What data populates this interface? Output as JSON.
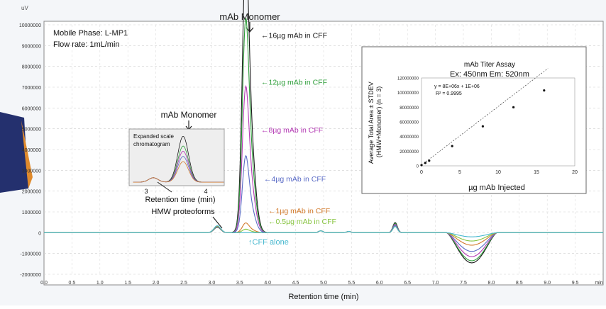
{
  "chart_data": [
    {
      "type": "line",
      "title": "mAb Monomer",
      "xlabel": "Retention time (min)",
      "ylabel": "uV",
      "xlim": [
        0.0,
        10.0
      ],
      "ylim": [
        -2000000,
        10000000
      ],
      "x_ticks": [
        "0.0",
        "0.5",
        "1.0",
        "1.5",
        "2.0",
        "2.5",
        "3.0",
        "3.5",
        "4.0",
        "4.5",
        "5.0",
        "5.5",
        "6.0",
        "6.5",
        "7.0",
        "7.5",
        "8.0",
        "8.5",
        "9.0",
        "9.5",
        "min"
      ],
      "y_ticks": [
        "10000000",
        "9000000",
        "8000000",
        "7000000",
        "6000000",
        "5000000",
        "4000000",
        "3000000",
        "2000000",
        "1000000",
        "0",
        "-1000000",
        "-2000000"
      ],
      "grid": true,
      "annotations": {
        "mobile_phase": "Mobile Phase: L-MP1",
        "flow_rate": "Flow rate: 1mL/min",
        "hmw": "HMW proteoforms",
        "cff_alone": "↑CFF alone"
      },
      "series": [
        {
          "name": "16µg mAb in CFF",
          "color": "#1a1a1a",
          "peak_height": 9500000,
          "dip": -1450000
        },
        {
          "name": "12µg mAb in CFF",
          "color": "#2e9e3a",
          "peak_height": 7250000,
          "dip": -1350000
        },
        {
          "name": "8µg mAb in CFF",
          "color": "#b43ab4",
          "peak_height": 4950000,
          "dip": -1150000
        },
        {
          "name": "4µg mAb in CFF",
          "color": "#5a6bc6",
          "peak_height": 2600000,
          "dip": -900000
        },
        {
          "name": "1µg mAb in CFF",
          "color": "#d27a2c",
          "peak_height": 330000,
          "dip": -600000
        },
        {
          "name": "0.5µg mAb in CFF",
          "color": "#86c33e",
          "peak_height": 120000,
          "dip": -400000
        },
        {
          "name": "",
          "color": "#48b8cf",
          "peak_height": 0,
          "dip": -200000
        }
      ],
      "peak_x": 3.6
    },
    {
      "type": "scatter",
      "title": "mAb Titer Assay",
      "subtitle": "Ex: 450nm Em: 520nm",
      "xlabel": "µg mAb Injected",
      "ylabel": "Average Total Area ± STDEV (HMW+Monomer) (n = 3)",
      "xlim": [
        0,
        20
      ],
      "ylim": [
        0,
        120000000
      ],
      "x_ticks": [
        "0",
        "5",
        "10",
        "15",
        "20"
      ],
      "y_ticks": [
        "0",
        "20000000",
        "40000000",
        "60000000",
        "80000000",
        "100000000",
        "120000000"
      ],
      "equation": "y = 8E+06x + 1E+06",
      "r2": "R² = 0.9995",
      "x": [
        0,
        0.5,
        1,
        4,
        8,
        12,
        16
      ],
      "y": [
        1000000,
        4000000,
        7000000,
        27000000,
        54000000,
        80000000,
        103000000
      ]
    }
  ],
  "inset": {
    "label": "Expanded scale chromatogram",
    "title": "mAb Monomer",
    "xlabel": "Retention time (min)",
    "x_ticks": [
      "3",
      "4"
    ]
  }
}
